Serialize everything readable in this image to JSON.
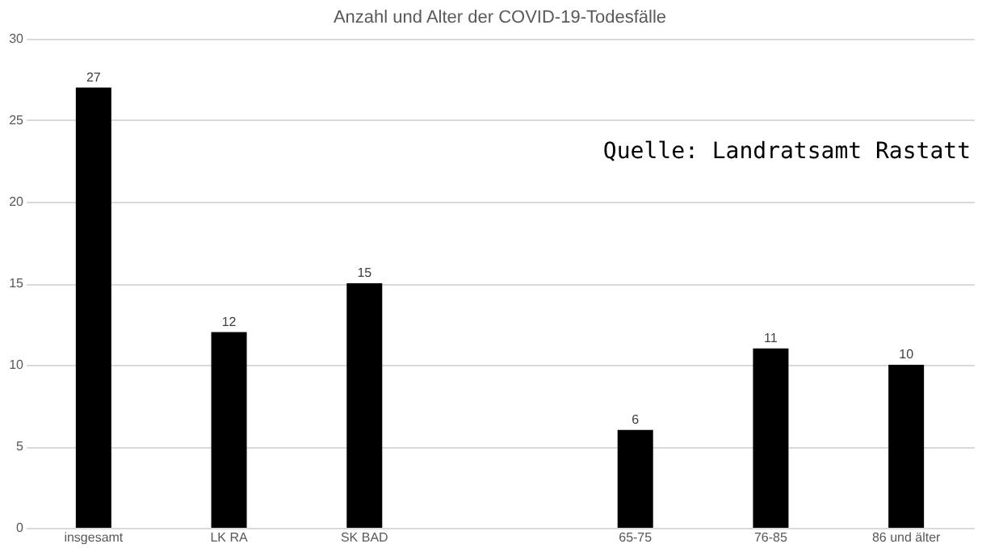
{
  "chart_data": {
    "type": "bar",
    "title": "Anzahl und Alter der COVID-19-Todesfälle",
    "categories": [
      "insgesamt",
      "LK RA",
      "SK BAD",
      null,
      "65-75",
      "76-85",
      "86 und älter"
    ],
    "values": [
      27,
      12,
      15,
      null,
      6,
      11,
      10
    ],
    "color": "#000000",
    "ylim": [
      0,
      30
    ],
    "yticks": [
      0,
      5,
      10,
      15,
      20,
      25,
      30
    ],
    "grid": "y",
    "data_labels": true,
    "annotations": [
      "Quelle: Landratsamt Rastatt"
    ]
  }
}
